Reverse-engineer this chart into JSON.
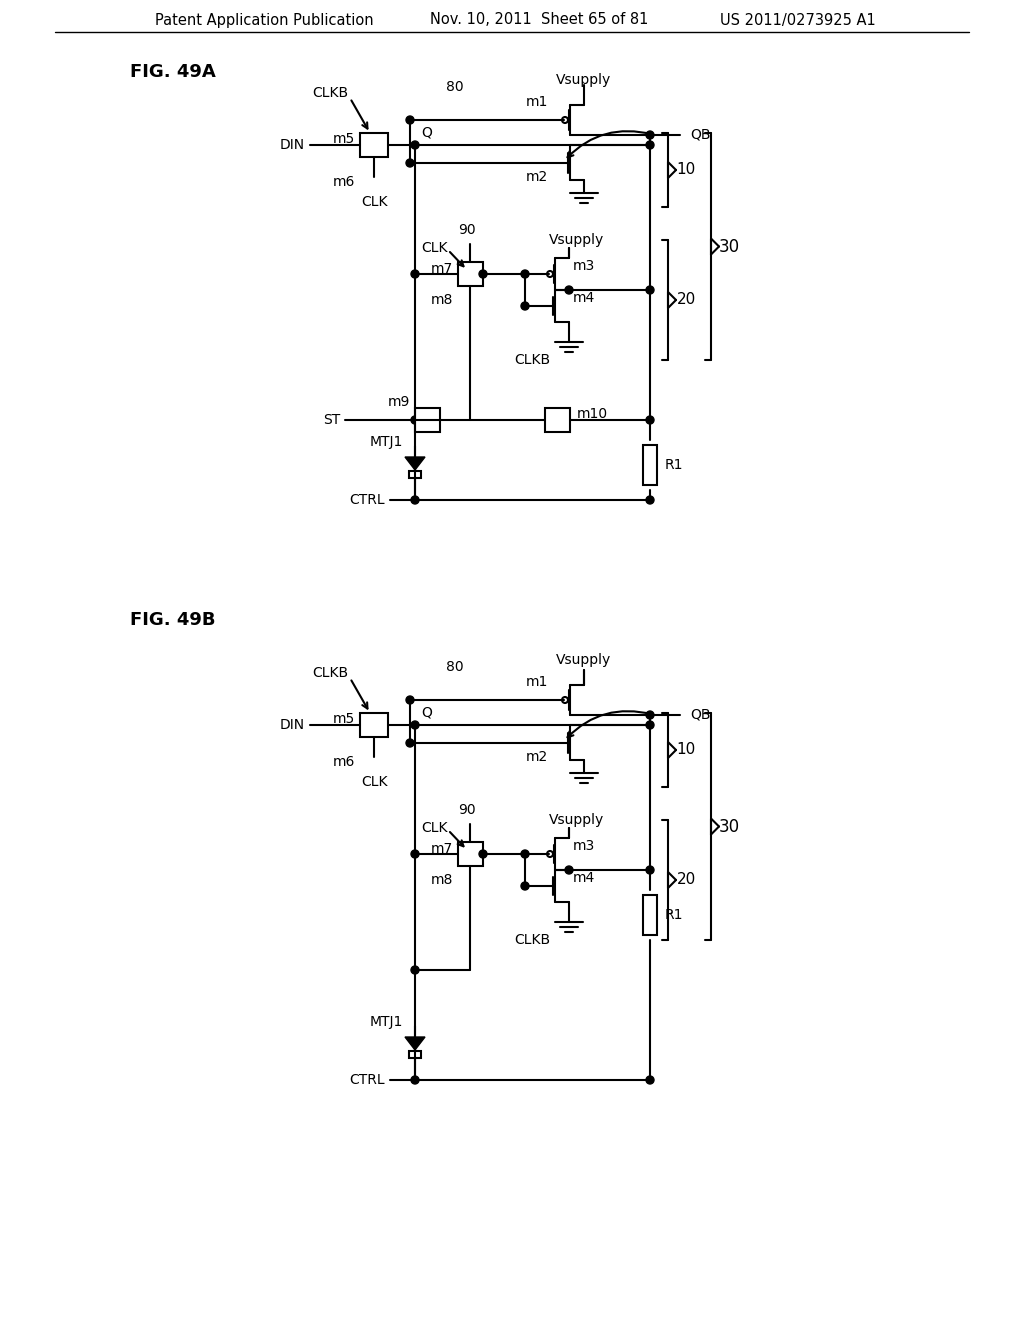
{
  "title_header_left": "Patent Application Publication",
  "title_header_mid": "Nov. 10, 2011  Sheet 65 of 81",
  "title_header_right": "US 2011/0273925 A1",
  "fig_label_A": "FIG. 49A",
  "fig_label_B": "FIG. 49B",
  "background": "#ffffff",
  "line_color": "#000000",
  "text_color": "#000000"
}
